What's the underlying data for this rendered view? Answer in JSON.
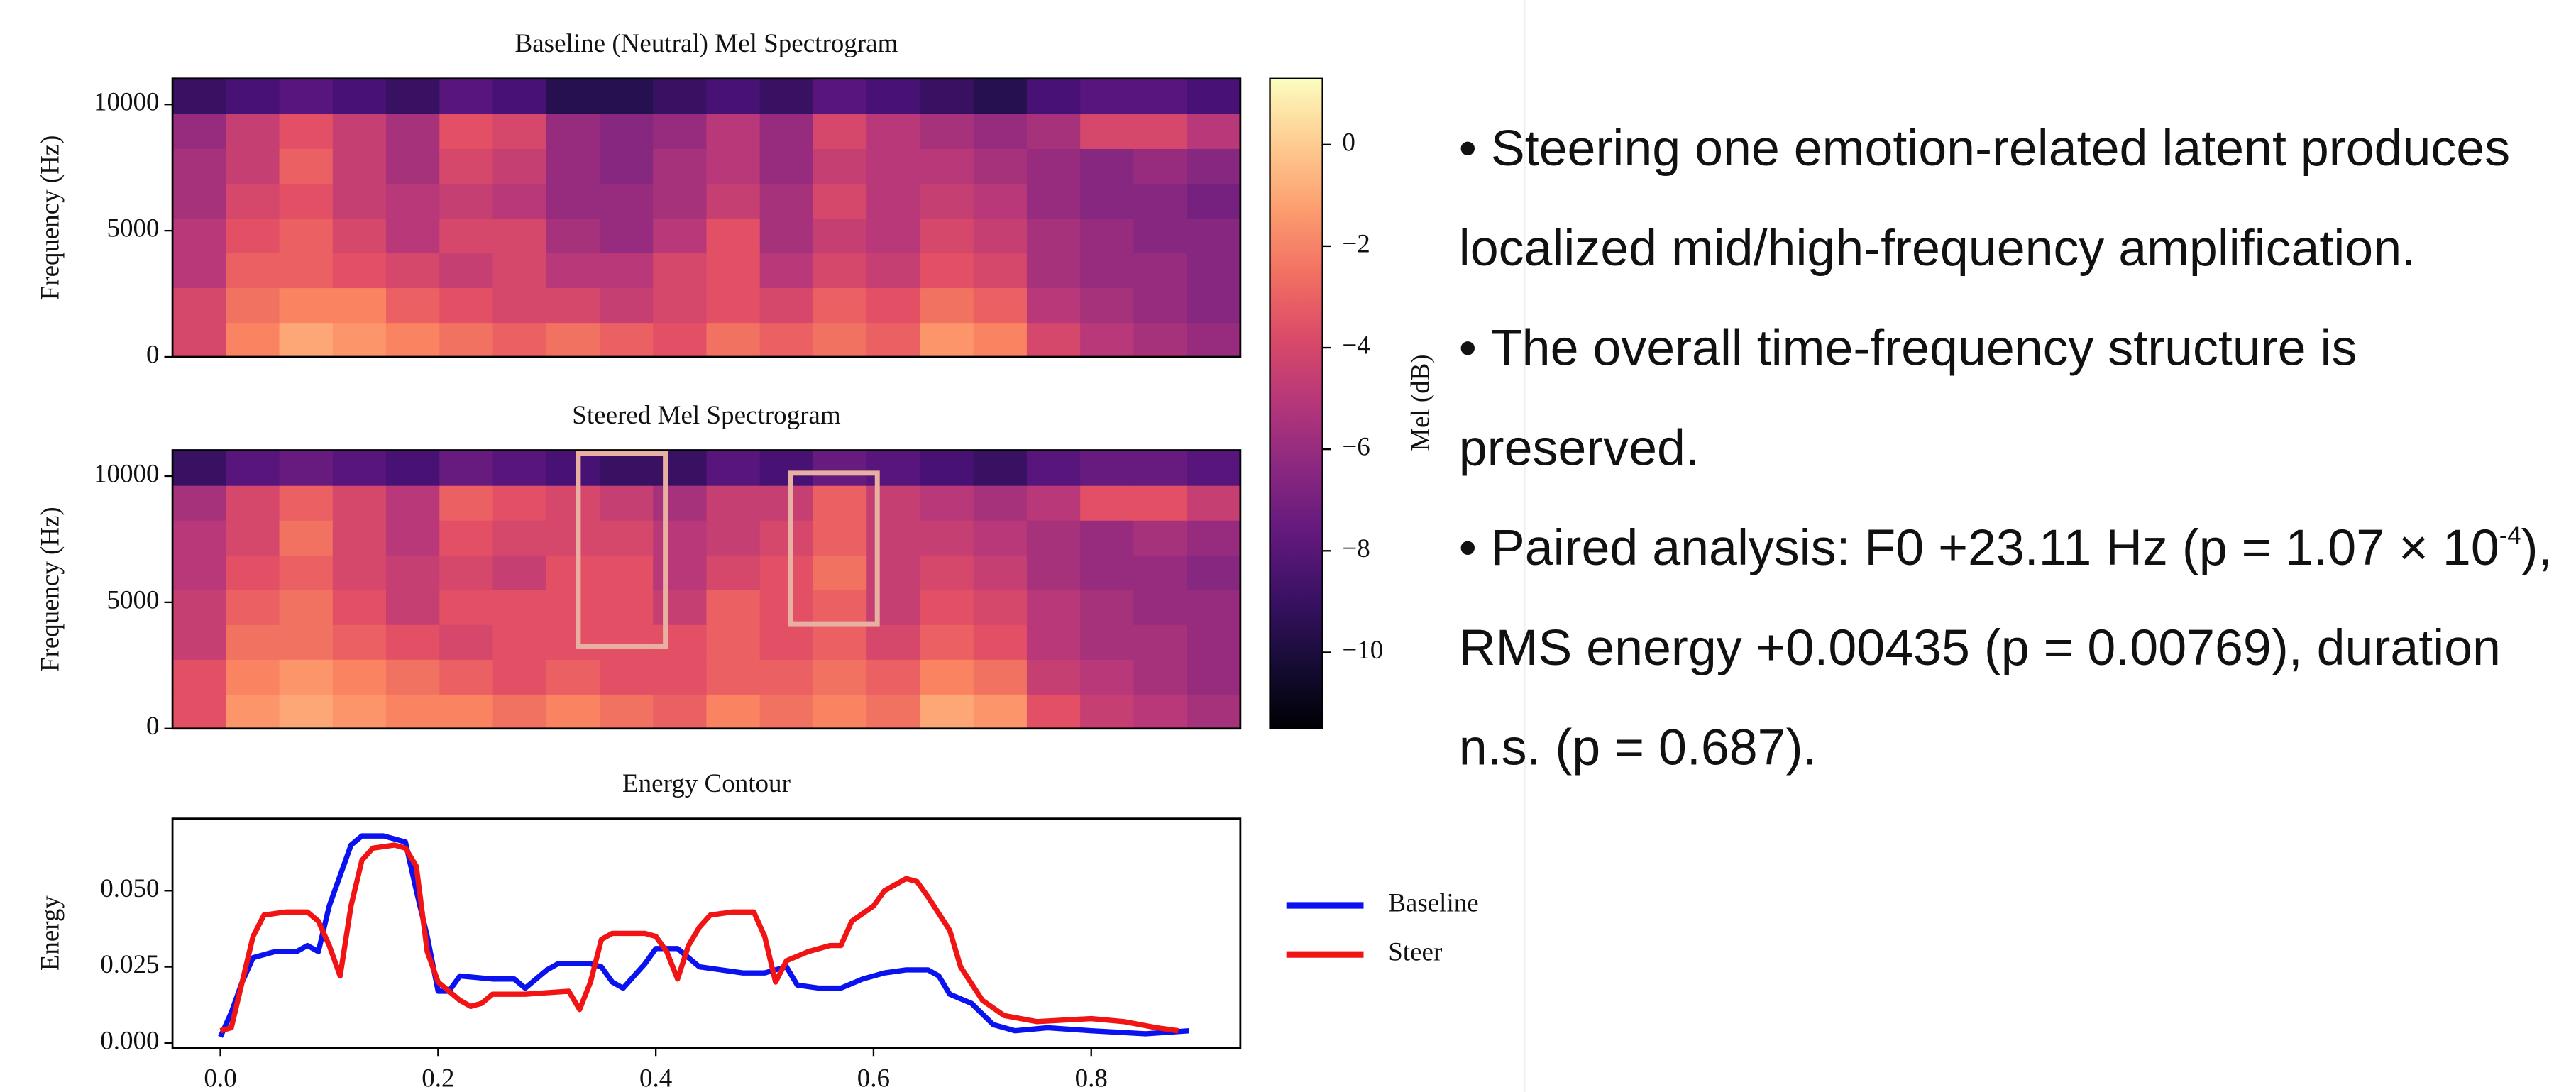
{
  "chart_data": [
    {
      "type": "heatmap",
      "title": "Baseline (Neutral) Mel Spectrogram",
      "ylabel": "Frequency (Hz)",
      "ylim": [
        0,
        11025
      ],
      "yticks": [
        0,
        5000,
        10000
      ],
      "colormap": "magma",
      "colorbar": {
        "label": "Mel (dB)",
        "zlim": [
          -11.5,
          1.3
        ],
        "ticks": [
          0,
          {
            "value": -2,
            "label": "−2"
          },
          {
            "value": -4,
            "label": "−4"
          },
          {
            "value": -6,
            "label": "−6"
          },
          {
            "value": -8,
            "label": "−8"
          },
          {
            "value": -10,
            "label": "−10"
          }
        ]
      },
      "z": [
        [
          -4,
          -2,
          -1,
          -1.5,
          -2,
          -2.5,
          -3,
          -2.5,
          -3,
          -3.5,
          -2.5,
          -3,
          -2.5,
          -3,
          -1.5,
          -2,
          -4,
          -5,
          -5.5,
          -6
        ],
        [
          -4,
          -2.5,
          -2,
          -2,
          -3,
          -3.5,
          -4,
          -4,
          -4.5,
          -4,
          -3.5,
          -4,
          -3,
          -3.5,
          -2.5,
          -3,
          -5,
          -5.5,
          -6,
          -6.5
        ],
        [
          -5,
          -3,
          -3,
          -3.5,
          -4,
          -4.5,
          -4,
          -5,
          -5,
          -4,
          -3.5,
          -5,
          -4,
          -4.5,
          -3.5,
          -4,
          -5.5,
          -6,
          -6,
          -6.5
        ],
        [
          -5,
          -3.5,
          -3,
          -4,
          -5,
          -4,
          -4,
          -5.5,
          -6,
          -5,
          -3.5,
          -5.5,
          -4.5,
          -5,
          -4,
          -4.5,
          -5.5,
          -6,
          -6.5,
          -6.5
        ],
        [
          -5.5,
          -4,
          -3.5,
          -4.5,
          -5,
          -4.5,
          -5,
          -6,
          -6,
          -5.5,
          -4.5,
          -5.5,
          -4,
          -5,
          -4.5,
          -5,
          -6,
          -6.5,
          -6.5,
          -7
        ],
        [
          -5.5,
          -4.5,
          -3,
          -4.5,
          -5.5,
          -4,
          -4.5,
          -6,
          -6.5,
          -5.5,
          -5,
          -6,
          -4.5,
          -5,
          -5,
          -5.5,
          -6,
          -6.5,
          -6,
          -6.5
        ],
        [
          -6,
          -4.5,
          -3.5,
          -4.5,
          -5.5,
          -3.5,
          -4,
          -6,
          -6.5,
          -6,
          -5,
          -6,
          -4,
          -5,
          -5.5,
          -6,
          -5.5,
          -4,
          -4,
          -5
        ],
        [
          -9,
          -8.5,
          -8,
          -8.5,
          -9,
          -8,
          -8.5,
          -9.5,
          -9.5,
          -9,
          -8.5,
          -9,
          -8,
          -8.5,
          -9,
          -9.5,
          -8.5,
          -8,
          -8,
          -8.5
        ]
      ]
    },
    {
      "type": "heatmap",
      "title": "Steered Mel Spectrogram",
      "ylabel": "Frequency (Hz)",
      "ylim": [
        0,
        11025
      ],
      "yticks": [
        0,
        5000,
        10000
      ],
      "colormap": "magma",
      "z": [
        [
          -3.5,
          -1.5,
          -1,
          -1.5,
          -2,
          -2,
          -2.5,
          -2,
          -2.5,
          -3,
          -2,
          -2.5,
          -2,
          -2.5,
          -1,
          -1.5,
          -3.5,
          -4.5,
          -5,
          -5.5
        ],
        [
          -3.5,
          -2,
          -1.5,
          -2,
          -2.5,
          -3,
          -3.5,
          -3,
          -3.5,
          -3.5,
          -3,
          -3,
          -2.5,
          -3,
          -2,
          -2.5,
          -4.5,
          -5,
          -5.5,
          -6
        ],
        [
          -4.5,
          -2.5,
          -2.5,
          -3,
          -3.5,
          -4,
          -3.5,
          -3.5,
          -3.5,
          -3.5,
          -3,
          -3.5,
          -3,
          -4,
          -3,
          -3.5,
          -5,
          -5.5,
          -5.5,
          -6
        ],
        [
          -4.5,
          -3,
          -2.5,
          -3.5,
          -4.5,
          -3.5,
          -3.5,
          -3.5,
          -3.5,
          -4.5,
          -3,
          -3.5,
          -3,
          -4.5,
          -3.5,
          -4,
          -5,
          -5.5,
          -6,
          -6
        ],
        [
          -5,
          -3.5,
          -3,
          -4,
          -4.5,
          -4,
          -4.5,
          -3.5,
          -3.5,
          -5,
          -4,
          -3.5,
          -2.5,
          -4.5,
          -4,
          -4.5,
          -5.5,
          -6,
          -6,
          -6.5
        ],
        [
          -5,
          -4,
          -2.5,
          -4,
          -5,
          -3.5,
          -4,
          -4,
          -4,
          -5,
          -4.5,
          -4,
          -3,
          -4.5,
          -4.5,
          -5,
          -5.5,
          -6,
          -5.5,
          -6
        ],
        [
          -5.5,
          -4,
          -3,
          -4,
          -5,
          -3,
          -3.5,
          -4,
          -4.5,
          -5.5,
          -4.5,
          -4.5,
          -3,
          -4.5,
          -5,
          -5.5,
          -5,
          -3.5,
          -3.5,
          -4.5
        ],
        [
          -9,
          -8,
          -7.5,
          -8,
          -8.5,
          -7.5,
          -8,
          -8.5,
          -9,
          -9,
          -8,
          -8.5,
          -7.5,
          -8,
          -8.5,
          -9,
          -8,
          -7.5,
          -7.5,
          -8
        ]
      ]
    },
    {
      "type": "line",
      "title": "Energy Contour",
      "ylabel": "Energy",
      "xlim": [
        -0.044,
        0.937
      ],
      "ylim": [
        -0.0016,
        0.0737
      ],
      "xticks": [
        {
          "value": 0,
          "label": "0.0"
        },
        {
          "value": 0.2,
          "label": "0.2"
        },
        {
          "value": 0.4,
          "label": "0.4"
        },
        {
          "value": 0.6,
          "label": "0.6"
        },
        {
          "value": 0.8,
          "label": "0.8"
        }
      ],
      "yticks": [
        {
          "value": 0,
          "label": "0.000"
        },
        {
          "value": 0.025,
          "label": "0.025"
        },
        {
          "value": 0.05,
          "label": "0.050"
        }
      ],
      "series": [
        {
          "name": "Baseline",
          "color": "#0a12f0",
          "x": [
            0,
            0.01,
            0.02,
            0.03,
            0.05,
            0.07,
            0.08,
            0.09,
            0.1,
            0.12,
            0.13,
            0.15,
            0.17,
            0.18,
            0.19,
            0.2,
            0.21,
            0.22,
            0.25,
            0.27,
            0.28,
            0.3,
            0.31,
            0.34,
            0.35,
            0.36,
            0.37,
            0.39,
            0.4,
            0.42,
            0.44,
            0.46,
            0.48,
            0.5,
            0.52,
            0.53,
            0.55,
            0.57,
            0.59,
            0.61,
            0.63,
            0.65,
            0.66,
            0.67,
            0.69,
            0.71,
            0.73,
            0.76,
            0.8,
            0.85,
            0.89
          ],
          "values": [
            0.002,
            0.01,
            0.02,
            0.028,
            0.03,
            0.03,
            0.032,
            0.03,
            0.045,
            0.065,
            0.068,
            0.068,
            0.066,
            0.05,
            0.035,
            0.017,
            0.017,
            0.022,
            0.021,
            0.021,
            0.018,
            0.024,
            0.026,
            0.026,
            0.025,
            0.02,
            0.018,
            0.026,
            0.031,
            0.031,
            0.025,
            0.024,
            0.023,
            0.023,
            0.025,
            0.019,
            0.018,
            0.018,
            0.021,
            0.023,
            0.024,
            0.024,
            0.022,
            0.016,
            0.013,
            0.006,
            0.004,
            0.005,
            0.004,
            0.003,
            0.004
          ]
        },
        {
          "name": "Steer",
          "color": "#f01414",
          "x": [
            0,
            0.01,
            0.02,
            0.03,
            0.04,
            0.06,
            0.08,
            0.09,
            0.1,
            0.11,
            0.12,
            0.13,
            0.14,
            0.16,
            0.17,
            0.18,
            0.19,
            0.2,
            0.22,
            0.23,
            0.24,
            0.25,
            0.28,
            0.32,
            0.33,
            0.34,
            0.35,
            0.36,
            0.39,
            0.4,
            0.41,
            0.42,
            0.43,
            0.44,
            0.45,
            0.47,
            0.49,
            0.5,
            0.51,
            0.52,
            0.54,
            0.56,
            0.57,
            0.58,
            0.6,
            0.61,
            0.63,
            0.64,
            0.65,
            0.67,
            0.68,
            0.7,
            0.72,
            0.75,
            0.8,
            0.83,
            0.86,
            0.88
          ],
          "values": [
            0.004,
            0.005,
            0.02,
            0.035,
            0.042,
            0.043,
            0.043,
            0.04,
            0.032,
            0.022,
            0.045,
            0.06,
            0.064,
            0.065,
            0.064,
            0.058,
            0.03,
            0.02,
            0.014,
            0.012,
            0.013,
            0.016,
            0.016,
            0.017,
            0.011,
            0.02,
            0.034,
            0.036,
            0.036,
            0.035,
            0.03,
            0.021,
            0.032,
            0.038,
            0.042,
            0.043,
            0.043,
            0.035,
            0.02,
            0.027,
            0.03,
            0.032,
            0.032,
            0.04,
            0.045,
            0.05,
            0.054,
            0.053,
            0.048,
            0.037,
            0.025,
            0.014,
            0.009,
            0.007,
            0.008,
            0.007,
            0.005,
            0.004
          ]
        }
      ]
    }
  ],
  "bullets": [
    {
      "text": "Steering one emotion-related latent produces localized mid/high-frequency amplification."
    },
    {
      "text": "The overall time-frequency structure is preserved."
    },
    {
      "text": "Paired analysis: F0 +23.11 Hz (p = 1.07 × 10",
      "sup": "-4",
      "tail": "), RMS energy +0.00435 (p = 0.00769), duration n.s. (p = 0.687)."
    }
  ]
}
